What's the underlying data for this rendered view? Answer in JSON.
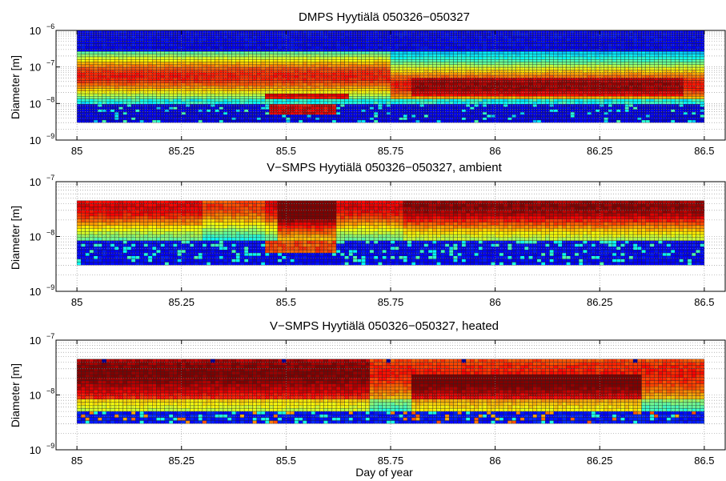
{
  "figure": {
    "xlabel": "Day of year"
  },
  "chart_data": [
    {
      "type": "heatmap",
      "title": "DMPS Hyytiälä 050326−050327",
      "xlabel": "",
      "ylabel": "Diameter [m]",
      "xlim": [
        84.95,
        86.55
      ],
      "ylim": [
        1e-09,
        1e-06
      ],
      "yscale": "log",
      "grid": true,
      "x_ticks": [
        85,
        85.25,
        85.5,
        85.75,
        86,
        86.25,
        86.5
      ],
      "x_tick_labels": [
        "85",
        "85.25",
        "85.5",
        "85.75",
        "86",
        "86.25",
        "86.5"
      ],
      "y_ticks": [
        -9,
        -8,
        -7,
        -6
      ],
      "y_tick_labels": [
        "10",
        "10",
        "10",
        "10"
      ],
      "y_tick_exponents": [
        "−9",
        "−8",
        "−7",
        "−6"
      ],
      "data_extent": {
        "x": [
          85.0,
          86.5
        ],
        "diameter": [
          3e-09,
          1e-06
        ]
      },
      "colormap": "jet",
      "pattern": "dmps"
    },
    {
      "type": "heatmap",
      "title": "V−SMPS Hyytiälä 050326−050327, ambient",
      "xlabel": "",
      "ylabel": "Diameter [m]",
      "xlim": [
        84.95,
        86.55
      ],
      "ylim": [
        1e-09,
        1e-07
      ],
      "yscale": "log",
      "grid": true,
      "x_ticks": [
        85,
        85.25,
        85.5,
        85.75,
        86,
        86.25,
        86.5
      ],
      "x_tick_labels": [
        "85",
        "85.25",
        "85.5",
        "85.75",
        "86",
        "86.25",
        "86.5"
      ],
      "y_ticks": [
        -9,
        -8,
        -7
      ],
      "y_tick_labels": [
        "10",
        "10",
        "10"
      ],
      "y_tick_exponents": [
        "−9",
        "−8",
        "−7"
      ],
      "data_extent": {
        "x": [
          85.0,
          86.5
        ],
        "diameter": [
          3e-09,
          4.5e-08
        ]
      },
      "colormap": "jet",
      "pattern": "ambient"
    },
    {
      "type": "heatmap",
      "title": "V−SMPS Hyytiälä 050326−050327, heated",
      "xlabel": "Day of year",
      "ylabel": "Diameter [m]",
      "xlim": [
        84.95,
        86.55
      ],
      "ylim": [
        1e-09,
        1e-07
      ],
      "yscale": "log",
      "grid": true,
      "x_ticks": [
        85,
        85.25,
        85.5,
        85.75,
        86,
        86.25,
        86.5
      ],
      "x_tick_labels": [
        "85",
        "85.25",
        "85.5",
        "85.75",
        "86",
        "86.25",
        "86.5"
      ],
      "y_ticks": [
        -9,
        -8,
        -7
      ],
      "y_tick_labels": [
        "10",
        "10",
        "10"
      ],
      "y_tick_exponents": [
        "−9",
        "−8",
        "−7"
      ],
      "data_extent": {
        "x": [
          85.0,
          86.5
        ],
        "diameter": [
          3e-09,
          4.5e-08
        ]
      },
      "colormap": "jet",
      "pattern": "heated"
    }
  ]
}
